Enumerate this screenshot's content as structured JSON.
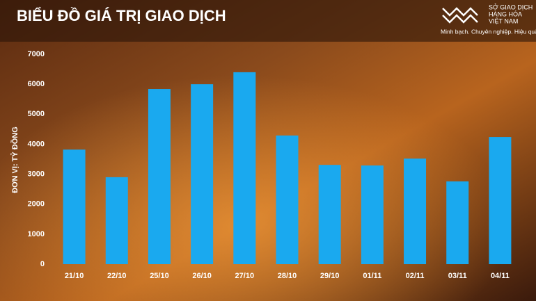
{
  "chart_data": {
    "type": "bar",
    "title": "BIỂU ĐỒ GIÁ TRỊ GIAO DỊCH",
    "y_label": "ĐƠN VỊ: TỶ ĐỒNG",
    "categories": [
      "21/10",
      "22/10",
      "25/10",
      "26/10",
      "27/10",
      "28/10",
      "29/10",
      "01/11",
      "02/11",
      "03/11",
      "04/11"
    ],
    "values": [
      3820,
      2900,
      5840,
      6000,
      6400,
      4290,
      3310,
      3290,
      3520,
      2760,
      4240
    ],
    "color": "#1aa9ef",
    "ylim": [
      0,
      7000
    ],
    "yticks": [
      0,
      1000,
      2000,
      3000,
      4000,
      5000,
      6000,
      7000
    ],
    "grid": false
  },
  "logo": {
    "name_lines": [
      "SỞ GIAO DỊCH",
      "HÀNG HÓA",
      "VIỆT NAM"
    ],
    "slogan": "Minh bạch. Chuyên nghiệp. Hiệu quả"
  }
}
